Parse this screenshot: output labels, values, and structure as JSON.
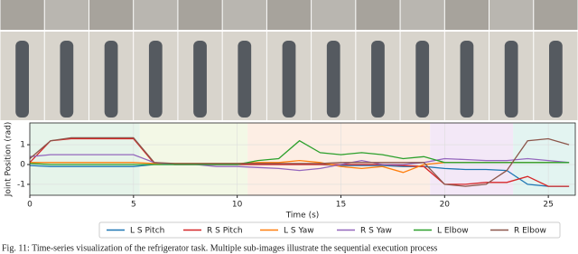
{
  "chart_data": {
    "type": "line",
    "xlabel": "Time (s)",
    "ylabel": "Joint Position (rad)",
    "x": [
      0,
      1,
      2,
      3,
      4,
      5,
      6,
      7,
      8,
      9,
      10,
      11,
      12,
      13,
      14,
      15,
      16,
      17,
      18,
      19,
      20,
      21,
      22,
      23,
      24,
      25,
      26
    ],
    "series": [
      {
        "name": "L S Pitch",
        "color": "#1f77b4",
        "values": [
          -0.05,
          -0.1,
          -0.1,
          -0.1,
          -0.1,
          -0.1,
          0,
          0,
          0,
          0,
          0,
          0,
          0,
          0,
          0,
          -0.05,
          -0.05,
          -0.05,
          -0.1,
          -0.1,
          -0.2,
          -0.25,
          -0.25,
          -0.3,
          -1.0,
          -1.1,
          -1.1
        ]
      },
      {
        "name": "R S Pitch",
        "color": "#d62728",
        "values": [
          0.1,
          1.2,
          1.3,
          1.3,
          1.3,
          1.3,
          0.05,
          0,
          0,
          0,
          0,
          0,
          0,
          0,
          0,
          0,
          0,
          0,
          -0.05,
          -0.1,
          -1.0,
          -1.0,
          -0.9,
          -0.9,
          -0.6,
          -1.1,
          -1.1
        ]
      },
      {
        "name": "L S Yaw",
        "color": "#ff7f0e",
        "values": [
          0.1,
          0.1,
          0.1,
          0.1,
          0.1,
          0.1,
          0.05,
          0.05,
          0.05,
          0.05,
          0.05,
          0.1,
          0.1,
          0.2,
          0.1,
          -0.1,
          -0.2,
          -0.1,
          -0.4,
          0,
          0.1,
          0.1,
          0.1,
          0.1,
          0.1,
          0.1,
          0.1
        ]
      },
      {
        "name": "R S Yaw",
        "color": "#9467bd",
        "values": [
          0.4,
          0.5,
          0.5,
          0.5,
          0.5,
          0.5,
          0.1,
          0,
          0,
          -0.1,
          -0.1,
          -0.15,
          -0.2,
          -0.3,
          -0.2,
          0,
          0.2,
          0,
          0,
          0.1,
          0.3,
          0.25,
          0.2,
          0.2,
          0.3,
          0.2,
          0.1
        ]
      },
      {
        "name": "L Elbow",
        "color": "#2ca02c",
        "values": [
          0.05,
          0,
          0,
          0,
          0,
          0,
          0,
          0,
          0,
          0,
          0,
          0.2,
          0.3,
          1.2,
          0.6,
          0.5,
          0.6,
          0.5,
          0.3,
          0.4,
          0.1,
          0.1,
          0.1,
          0.1,
          0.1,
          0.1,
          0.1
        ]
      },
      {
        "name": "R Elbow",
        "color": "#8c564b",
        "values": [
          0.3,
          1.2,
          1.35,
          1.35,
          1.35,
          1.35,
          0.1,
          0.05,
          0.05,
          0.05,
          0.05,
          0.05,
          0.05,
          0.05,
          0.05,
          0.1,
          0.1,
          0.1,
          0.1,
          0.1,
          -1.0,
          -1.1,
          -1.0,
          -0.3,
          1.2,
          1.3,
          1.0
        ]
      }
    ],
    "spans": [
      {
        "start": 0,
        "end": 5.3,
        "color": "#e6f4ea"
      },
      {
        "start": 5.3,
        "end": 10.5,
        "color": "#f3f8e6"
      },
      {
        "start": 10.5,
        "end": 19.3,
        "color": "#fdeee4"
      },
      {
        "start": 19.3,
        "end": 23.3,
        "color": "#f3e8f7"
      },
      {
        "start": 23.3,
        "end": 26.3,
        "color": "#e3f4f1"
      }
    ],
    "xlim": [
      0,
      26.3
    ],
    "ylim": [
      -1.55,
      2.1
    ],
    "xticks": [
      0,
      5,
      10,
      15,
      20,
      25
    ],
    "yticks": [
      -1,
      0,
      1
    ],
    "grid": true
  },
  "caption": "Fig. 11: Time-series visualization of the refrigerator task. Multiple sub-images illustrate the sequential execution process"
}
